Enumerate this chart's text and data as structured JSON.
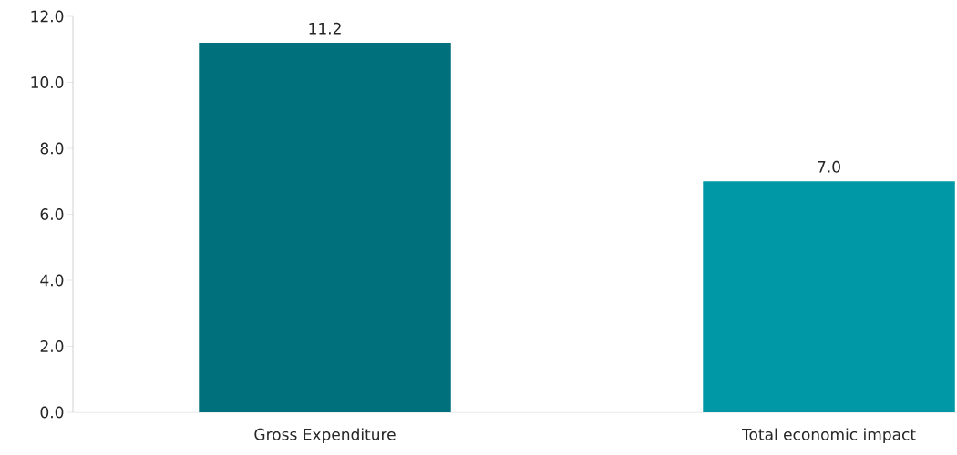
{
  "chart_data": {
    "type": "bar",
    "categories": [
      "Gross Expenditure",
      "Total economic impact"
    ],
    "values": [
      11.2,
      7.0
    ],
    "colors": [
      "#00707c",
      "#0097a7"
    ],
    "ylim": [
      0,
      12
    ],
    "yticks": [
      {
        "value": 0,
        "label": "0.0"
      },
      {
        "value": 2,
        "label": "2.0"
      },
      {
        "value": 4,
        "label": "4.0"
      },
      {
        "value": 6,
        "label": "6.0"
      },
      {
        "value": 8,
        "label": "8.0"
      },
      {
        "value": 10,
        "label": "10.0"
      },
      {
        "value": 12,
        "label": "12.0"
      }
    ],
    "value_labels": [
      "11.2",
      "7.0"
    ],
    "grid": false
  }
}
